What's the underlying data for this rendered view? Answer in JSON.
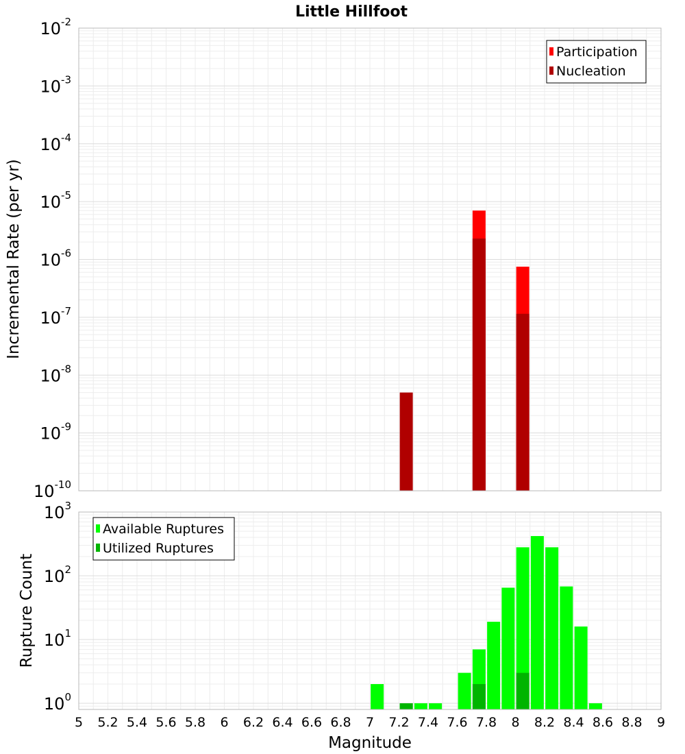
{
  "chart_data": [
    {
      "type": "bar",
      "title": "Little Hillfoot",
      "xlabel": "",
      "ylabel": "Incremental Rate (per yr)",
      "yscale": "log",
      "ylim": [
        1e-10,
        0.01
      ],
      "y_ticks": [
        {
          "base": "10",
          "exp": "-10"
        },
        {
          "base": "10",
          "exp": "-9"
        },
        {
          "base": "10",
          "exp": "-8"
        },
        {
          "base": "10",
          "exp": "-7"
        },
        {
          "base": "10",
          "exp": "-6"
        },
        {
          "base": "10",
          "exp": "-5"
        },
        {
          "base": "10",
          "exp": "-4"
        },
        {
          "base": "10",
          "exp": "-3"
        },
        {
          "base": "10",
          "exp": "-2"
        }
      ],
      "xlim": [
        5,
        9
      ],
      "grid": true,
      "legend_position": "top-right",
      "series": [
        {
          "name": "Participation",
          "color": "#ff0000",
          "x": [
            7.75,
            8.05
          ],
          "values": [
            7e-06,
            7.5e-07
          ]
        },
        {
          "name": "Nucleation",
          "color": "#b00000",
          "x": [
            7.25,
            7.75,
            8.05
          ],
          "values": [
            5e-09,
            2.3e-06,
            1.15e-07
          ]
        }
      ]
    },
    {
      "type": "bar",
      "title": "",
      "xlabel": "Magnitude",
      "ylabel": "Rupture Count",
      "yscale": "log",
      "ylim": [
        0.8,
        1000
      ],
      "y_ticks": [
        {
          "base": "10",
          "exp": "0",
          "value": 1
        },
        {
          "base": "10",
          "exp": "1",
          "value": 10
        },
        {
          "base": "10",
          "exp": "2",
          "value": 100
        },
        {
          "base": "10",
          "exp": "3",
          "value": 1000
        }
      ],
      "xlim": [
        5,
        9
      ],
      "x_ticks": [
        "5",
        "5.2",
        "5.4",
        "5.6",
        "5.8",
        "6",
        "6.2",
        "6.4",
        "6.6",
        "6.8",
        "7",
        "7.2",
        "7.4",
        "7.6",
        "7.8",
        "8",
        "8.2",
        "8.4",
        "8.6",
        "8.8",
        "9"
      ],
      "grid": true,
      "legend_position": "top-left",
      "series": [
        {
          "name": "Available Ruptures",
          "color": "#00ff00",
          "x": [
            7.05,
            7.25,
            7.35,
            7.45,
            7.65,
            7.75,
            7.85,
            7.95,
            8.05,
            8.15,
            8.25,
            8.35,
            8.45,
            8.55
          ],
          "values": [
            2,
            1,
            1,
            1,
            3,
            7,
            19,
            65,
            280,
            420,
            280,
            68,
            16,
            1
          ]
        },
        {
          "name": "Utilized Ruptures",
          "color": "#00b400",
          "x": [
            7.25,
            7.75,
            8.05
          ],
          "values": [
            1,
            2,
            3
          ]
        }
      ]
    }
  ]
}
